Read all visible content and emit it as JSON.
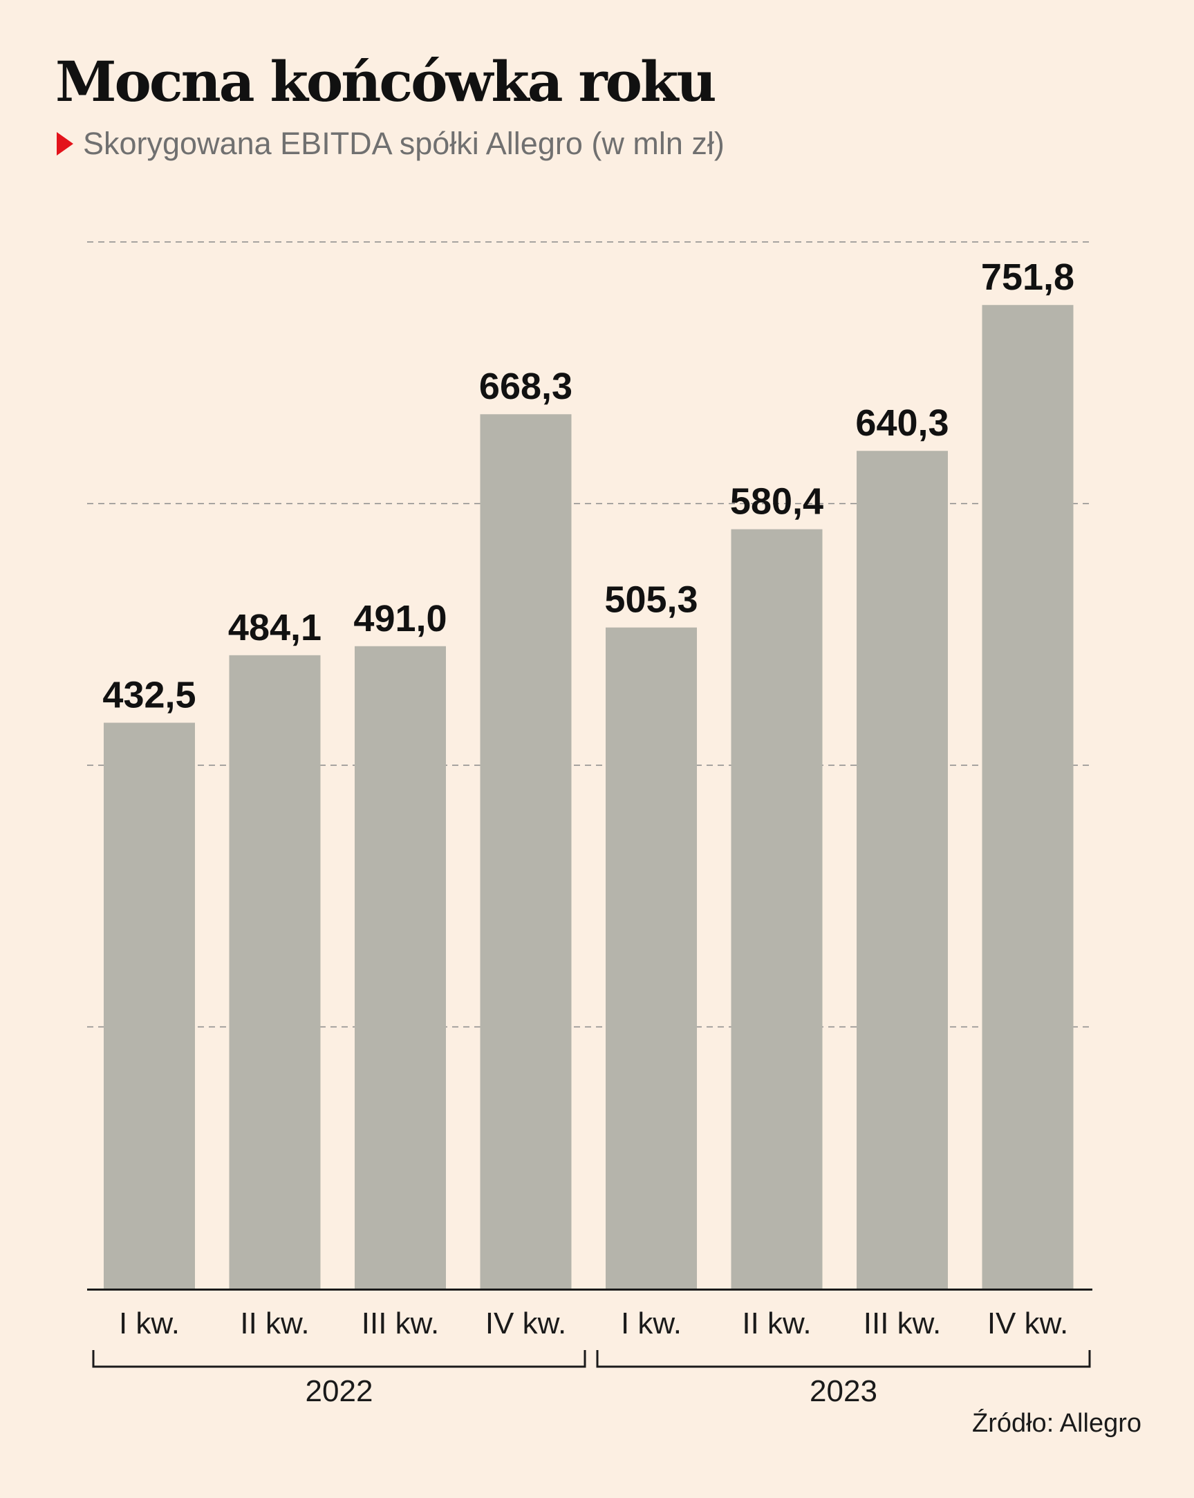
{
  "title": "Mocna końcówka roku",
  "subtitle": "Skorygowana EBITDA spółki Allegro (w mln zł)",
  "source": "Źródło: Allegro",
  "colors": {
    "background": "#fcefe2",
    "bar": "#b5b4ab",
    "accent_marker": "#e3131b",
    "grid": "#8a8a8a",
    "axis": "#1a1a1a"
  },
  "chart_data": {
    "type": "bar",
    "title": "Mocna końcówka roku",
    "subtitle": "Skorygowana EBITDA spółki Allegro (w mln zł)",
    "xlabel": "",
    "ylabel": "",
    "ylim": [
      0,
      800
    ],
    "grid": true,
    "grid_style": "dashed",
    "y_ticks_shown": false,
    "categories": [
      "I kw.",
      "II kw.",
      "III kw.",
      "IV kw.",
      "I kw.",
      "II kw.",
      "III kw.",
      "IV kw."
    ],
    "value_labels": [
      "432,5",
      "484,1",
      "491,0",
      "668,3",
      "505,3",
      "580,4",
      "640,3",
      "751,8"
    ],
    "values": [
      432.5,
      484.1,
      491.0,
      668.3,
      505.3,
      580.4,
      640.3,
      751.8
    ],
    "groups": [
      {
        "label": "2022",
        "categories": [
          "I kw.",
          "II kw.",
          "III kw.",
          "IV kw."
        ]
      },
      {
        "label": "2023",
        "categories": [
          "I kw.",
          "II kw.",
          "III kw.",
          "IV kw."
        ]
      }
    ]
  }
}
